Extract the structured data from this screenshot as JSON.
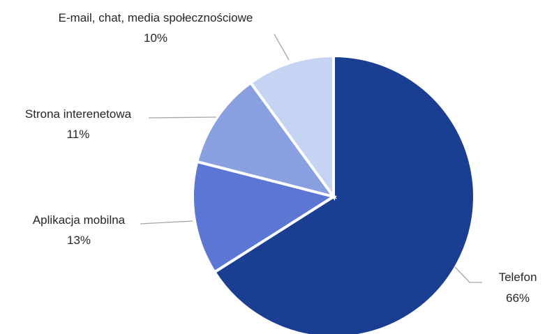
{
  "chart_data": {
    "type": "pie",
    "title": "",
    "slices": [
      {
        "label": "Telefon",
        "value": 66,
        "value_label": "66%",
        "color": "#1a3f92"
      },
      {
        "label": "Aplikacja mobilna",
        "value": 13,
        "value_label": "13%",
        "color": "#5b77d3"
      },
      {
        "label": "Strona interenetowa",
        "value": 11,
        "value_label": "11%",
        "color": "#8a9fdf"
      },
      {
        "label": "E-mail, chat, media społecznościowe",
        "value": 10,
        "value_label": "10%",
        "color": "#c5d4f3"
      }
    ],
    "start_angle": "12 o'clock",
    "direction": "clockwise",
    "legend": "none",
    "data_labels": "outside with leader lines"
  }
}
